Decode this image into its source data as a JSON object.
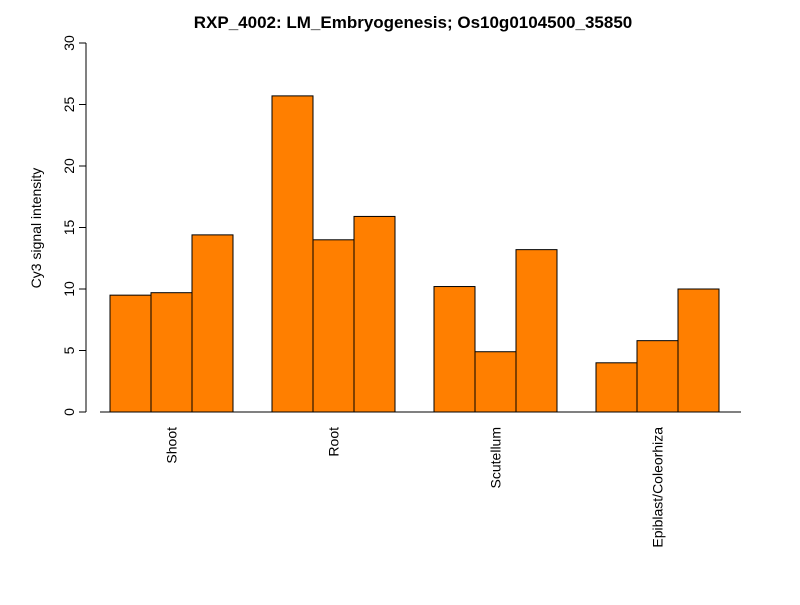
{
  "chart_data": {
    "type": "bar",
    "title": "RXP_4002: LM_Embryogenesis; Os10g0104500_35850",
    "xlabel": "",
    "ylabel": "Cy3 signal intensity",
    "ylim": [
      0,
      30
    ],
    "yticks": [
      "0",
      "5",
      "10",
      "15",
      "20",
      "25",
      "30"
    ],
    "ytick_values": [
      0,
      5,
      10,
      15,
      20,
      25,
      30
    ],
    "categories": [
      "Shoot",
      "Root",
      "Scutellum",
      "Epiblast/Coleorhiza"
    ],
    "groups": [
      {
        "category": "Shoot",
        "values": [
          9.5,
          9.7,
          14.4
        ]
      },
      {
        "category": "Root",
        "values": [
          25.7,
          14.0,
          15.9
        ]
      },
      {
        "category": "Scutellum",
        "values": [
          10.2,
          4.9,
          13.2
        ]
      },
      {
        "category": "Epiblast/Coleorhiza",
        "values": [
          4.0,
          5.8,
          10.0
        ]
      }
    ],
    "bar_color": "#FF7F00",
    "bar_stroke": "#000000",
    "grid": false,
    "legend": "none"
  }
}
